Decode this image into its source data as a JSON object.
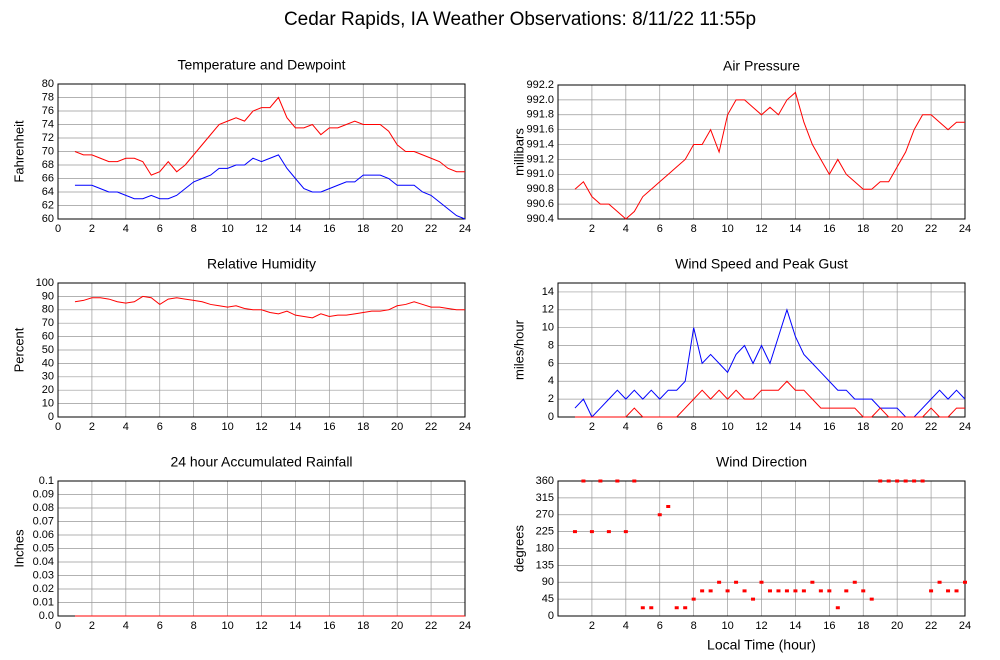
{
  "page_title": "Cedar Rapids, IA Weather Observations: 8/11/22 11:55p",
  "chart_data": [
    {
      "type": "line",
      "title": "Temperature and Dewpoint",
      "y_label": "Fahrenheit",
      "x": [
        1,
        1.5,
        2,
        2.5,
        3,
        3.5,
        4,
        4.5,
        5,
        5.5,
        6,
        6.5,
        7,
        7.5,
        8,
        8.5,
        9,
        9.5,
        10,
        10.5,
        11,
        11.5,
        12,
        12.5,
        13,
        13.5,
        14,
        14.5,
        15,
        15.5,
        16,
        16.5,
        17,
        17.5,
        18,
        18.5,
        19,
        19.5,
        20,
        20.5,
        21,
        21.5,
        22,
        22.5,
        23,
        23.5,
        24
      ],
      "series": [
        {
          "color": "#ff0000",
          "values": [
            70,
            69.5,
            69.5,
            69,
            68.5,
            68.5,
            69,
            69,
            68.5,
            66.5,
            67,
            68.5,
            67,
            68,
            69.5,
            71,
            72.5,
            74,
            74.5,
            75,
            74.5,
            76,
            76.5,
            76.5,
            78,
            75,
            73.5,
            73.5,
            74,
            72.5,
            73.5,
            73.5,
            74,
            74.5,
            74,
            74,
            74,
            73,
            71,
            70,
            70,
            69.5,
            69,
            68.5,
            67.5,
            67,
            67
          ]
        },
        {
          "color": "#0000ff",
          "values": [
            65,
            65,
            65,
            64.5,
            64,
            64,
            63.5,
            63,
            63,
            63.5,
            63,
            63,
            63.5,
            64.5,
            65.5,
            66,
            66.5,
            67.5,
            67.5,
            68,
            68,
            69,
            68.5,
            69,
            69.5,
            67.5,
            66,
            64.5,
            64,
            64,
            64.5,
            65,
            65.5,
            65.5,
            66.5,
            66.5,
            66.5,
            66,
            65,
            65,
            65,
            64,
            63.5,
            62.5,
            61.5,
            60.5,
            60
          ]
        }
      ],
      "xlim": [
        0,
        24
      ],
      "ylim": [
        60,
        80
      ],
      "xticks": [
        0,
        2,
        4,
        6,
        8,
        10,
        12,
        14,
        16,
        18,
        20,
        22,
        24
      ],
      "yticks": [
        60,
        62,
        64,
        66,
        68,
        70,
        72,
        74,
        76,
        78,
        80
      ],
      "grid": true
    },
    {
      "type": "line",
      "title": "Air Pressure",
      "y_label": "millibars",
      "x": [
        1,
        1.5,
        2,
        2.5,
        3,
        3.5,
        4,
        4.5,
        5,
        5.5,
        6,
        6.5,
        7,
        7.5,
        8,
        8.5,
        9,
        9.5,
        10,
        10.5,
        11,
        11.5,
        12,
        12.5,
        13,
        13.5,
        14,
        14.5,
        15,
        15.5,
        16,
        16.5,
        17,
        17.5,
        18,
        18.5,
        19,
        19.5,
        20,
        20.5,
        21,
        21.5,
        22,
        22.5,
        23,
        23.5,
        24
      ],
      "series": [
        {
          "color": "#ff0000",
          "values": [
            990.8,
            990.9,
            990.7,
            990.6,
            990.6,
            990.5,
            990.4,
            990.5,
            990.7,
            990.8,
            990.9,
            991.0,
            991.1,
            991.2,
            991.4,
            991.4,
            991.6,
            991.3,
            991.8,
            992.0,
            992.0,
            991.9,
            991.8,
            991.9,
            991.8,
            992.0,
            992.1,
            991.7,
            991.4,
            991.2,
            991.0,
            991.2,
            991.0,
            990.9,
            990.8,
            990.8,
            990.9,
            990.9,
            991.1,
            991.3,
            991.6,
            991.8,
            991.8,
            991.7,
            991.6,
            991.7,
            991.7
          ]
        }
      ],
      "xlim": [
        0,
        24
      ],
      "ylim": [
        990.4,
        992.2
      ],
      "xticks": [
        2,
        4,
        6,
        8,
        10,
        12,
        14,
        16,
        18,
        20,
        22,
        24
      ],
      "yticks": [
        990.4,
        990.6,
        990.8,
        {
          "value": 991,
          "label": "991.0"
        },
        991.2,
        991.4,
        991.6,
        991.8,
        {
          "value": 992,
          "label": "992.0"
        },
        992.2
      ],
      "grid": true
    },
    {
      "type": "line",
      "title": "Relative Humidity",
      "y_label": "Percent",
      "x": [
        1,
        1.5,
        2,
        2.5,
        3,
        3.5,
        4,
        4.5,
        5,
        5.5,
        6,
        6.5,
        7,
        7.5,
        8,
        8.5,
        9,
        9.5,
        10,
        10.5,
        11,
        11.5,
        12,
        12.5,
        13,
        13.5,
        14,
        14.5,
        15,
        15.5,
        16,
        16.5,
        17,
        17.5,
        18,
        18.5,
        19,
        19.5,
        20,
        20.5,
        21,
        21.5,
        22,
        22.5,
        23,
        23.5,
        24
      ],
      "series": [
        {
          "color": "#ff0000",
          "values": [
            86,
            87,
            89,
            89,
            88,
            86,
            85,
            86,
            90,
            89,
            84,
            88,
            89,
            88,
            87,
            86,
            84,
            83,
            82,
            83,
            81,
            80,
            80,
            78,
            77,
            79,
            76,
            75,
            74,
            77,
            75,
            76,
            76,
            77,
            78,
            79,
            79,
            80,
            83,
            84,
            86,
            84,
            82,
            82,
            81,
            80,
            80
          ]
        }
      ],
      "xlim": [
        0,
        24
      ],
      "ylim": [
        0,
        100
      ],
      "xticks": [
        0,
        2,
        4,
        6,
        8,
        10,
        12,
        14,
        16,
        18,
        20,
        22,
        24
      ],
      "yticks": [
        0,
        10,
        20,
        30,
        40,
        50,
        60,
        70,
        80,
        90,
        100
      ],
      "grid": true
    },
    {
      "type": "line",
      "title": "Wind Speed and Peak Gust",
      "y_label": "miles/hour",
      "x": [
        1,
        1.5,
        2,
        2.5,
        3,
        3.5,
        4,
        4.5,
        5,
        5.5,
        6,
        6.5,
        7,
        7.5,
        8,
        8.5,
        9,
        9.5,
        10,
        10.5,
        11,
        11.5,
        12,
        12.5,
        13,
        13.5,
        14,
        14.5,
        15,
        15.5,
        16,
        16.5,
        17,
        17.5,
        18,
        18.5,
        19,
        19.5,
        20,
        20.5,
        21,
        21.5,
        22,
        22.5,
        23,
        23.5,
        24
      ],
      "series": [
        {
          "color": "#0000ff",
          "values": [
            1,
            2,
            0,
            1,
            2,
            3,
            2,
            3,
            2,
            3,
            2,
            3,
            3,
            4,
            10,
            6,
            7,
            6,
            5,
            7,
            8,
            6,
            8,
            6,
            9,
            12,
            9,
            7,
            6,
            5,
            4,
            3,
            3,
            2,
            2,
            2,
            1,
            1,
            1,
            0,
            0,
            1,
            2,
            3,
            2,
            3,
            2
          ]
        },
        {
          "color": "#ff0000",
          "values": [
            0,
            0,
            0,
            0,
            0,
            0,
            0,
            1,
            0,
            0,
            0,
            0,
            0,
            1,
            2,
            3,
            2,
            3,
            2,
            3,
            2,
            2,
            3,
            3,
            3,
            4,
            3,
            3,
            2,
            1,
            1,
            1,
            1,
            1,
            0,
            0,
            1,
            0,
            0,
            0,
            0,
            0,
            1,
            0,
            0,
            1,
            1
          ]
        }
      ],
      "xlim": [
        0,
        24
      ],
      "ylim": [
        0,
        15
      ],
      "xticks": [
        2,
        4,
        6,
        8,
        10,
        12,
        14,
        16,
        18,
        20,
        22,
        24
      ],
      "yticks": [
        0,
        2,
        4,
        6,
        8,
        10,
        12,
        14
      ],
      "grid": true
    },
    {
      "type": "line",
      "title": "24 hour Accumulated Rainfall",
      "y_label": "Inches",
      "x": [
        1,
        24
      ],
      "series": [
        {
          "color": "#ff0000",
          "values": [
            0,
            0
          ]
        }
      ],
      "xlim": [
        0,
        24
      ],
      "ylim": [
        0,
        0.1
      ],
      "xticks": [
        0,
        2,
        4,
        6,
        8,
        10,
        12,
        14,
        16,
        18,
        20,
        22,
        24
      ],
      "yticks": [
        {
          "value": 0,
          "label": "0.0"
        },
        0.01,
        0.02,
        0.03,
        0.04,
        0.05,
        0.06,
        0.07,
        0.08,
        0.09,
        0.1
      ],
      "grid": true
    },
    {
      "type": "scatter",
      "title": "Wind Direction",
      "y_label": "degrees",
      "x_label": "Local Time (hour)",
      "x": [
        1,
        1.5,
        2,
        2.5,
        3,
        3.5,
        4,
        4.5,
        5,
        5.5,
        6,
        6.5,
        7,
        7.5,
        8,
        8.5,
        9,
        9.5,
        10,
        10.5,
        11,
        11.5,
        12,
        12.5,
        13,
        13.5,
        14,
        14.5,
        15,
        15.5,
        16,
        16.5,
        17,
        17.5,
        18,
        18.5,
        19,
        19.5,
        20,
        20.5,
        21,
        21.5,
        22,
        22.5,
        23,
        23.5,
        24
      ],
      "series": [
        {
          "color": "#ff0000",
          "values": [
            225,
            360,
            225,
            360,
            225,
            360,
            225,
            360,
            22,
            22,
            270,
            292,
            22,
            22,
            45,
            67,
            67,
            90,
            67,
            90,
            67,
            45,
            90,
            67,
            67,
            67,
            67,
            67,
            90,
            67,
            67,
            22,
            67,
            90,
            67,
            45,
            360,
            360,
            360,
            360,
            360,
            360,
            67,
            90,
            67,
            67,
            90
          ]
        }
      ],
      "xlim": [
        0,
        24
      ],
      "ylim": [
        0,
        360
      ],
      "xticks": [
        2,
        4,
        6,
        8,
        10,
        12,
        14,
        16,
        18,
        20,
        22,
        24
      ],
      "yticks": [
        0,
        45,
        90,
        135,
        180,
        225,
        270,
        315,
        360
      ],
      "grid": true
    }
  ]
}
